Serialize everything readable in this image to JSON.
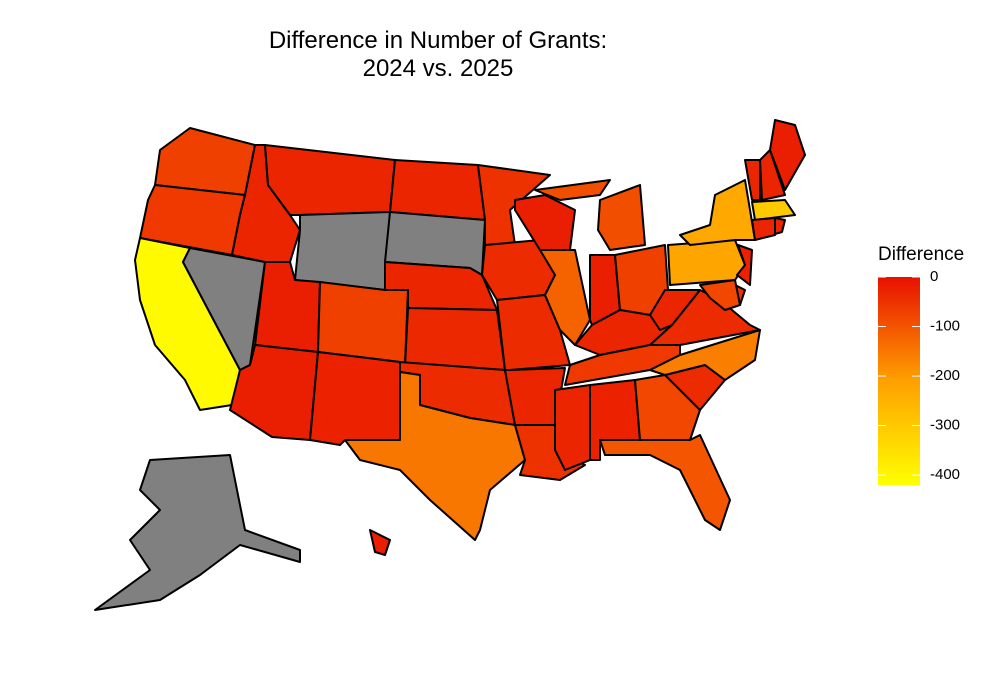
{
  "chart_data": {
    "type": "choropleth",
    "title": "Difference in Number of Grants:\n2024 vs. 2025",
    "legend_title": "Difference",
    "values": [
      -70,
      -60,
      -410,
      null,
      -30,
      -30,
      null,
      -20,
      -20,
      -70,
      -25,
      -30,
      null,
      -30,
      -35,
      -40,
      -150,
      -50,
      -40,
      -40,
      -30,
      -50,
      -20,
      -120,
      -90,
      -90,
      -20,
      -70,
      -30,
      -60,
      -30,
      -25,
      -80,
      -100,
      -40,
      -160,
      -40,
      -30,
      -220,
      -230,
      -30,
      -30,
      -20,
      -300,
      -30,
      -30,
      -25,
      -50,
      -80,
      null,
      -20
    ],
    "colorlim": [
      -420,
      0
    ],
    "colorticks": [
      0,
      -100,
      -200,
      -300,
      -400
    ],
    "low_color": "#ffff00",
    "mid_color": "#ffa000",
    "high_color": "#e81000",
    "na_color": "#808080"
  }
}
